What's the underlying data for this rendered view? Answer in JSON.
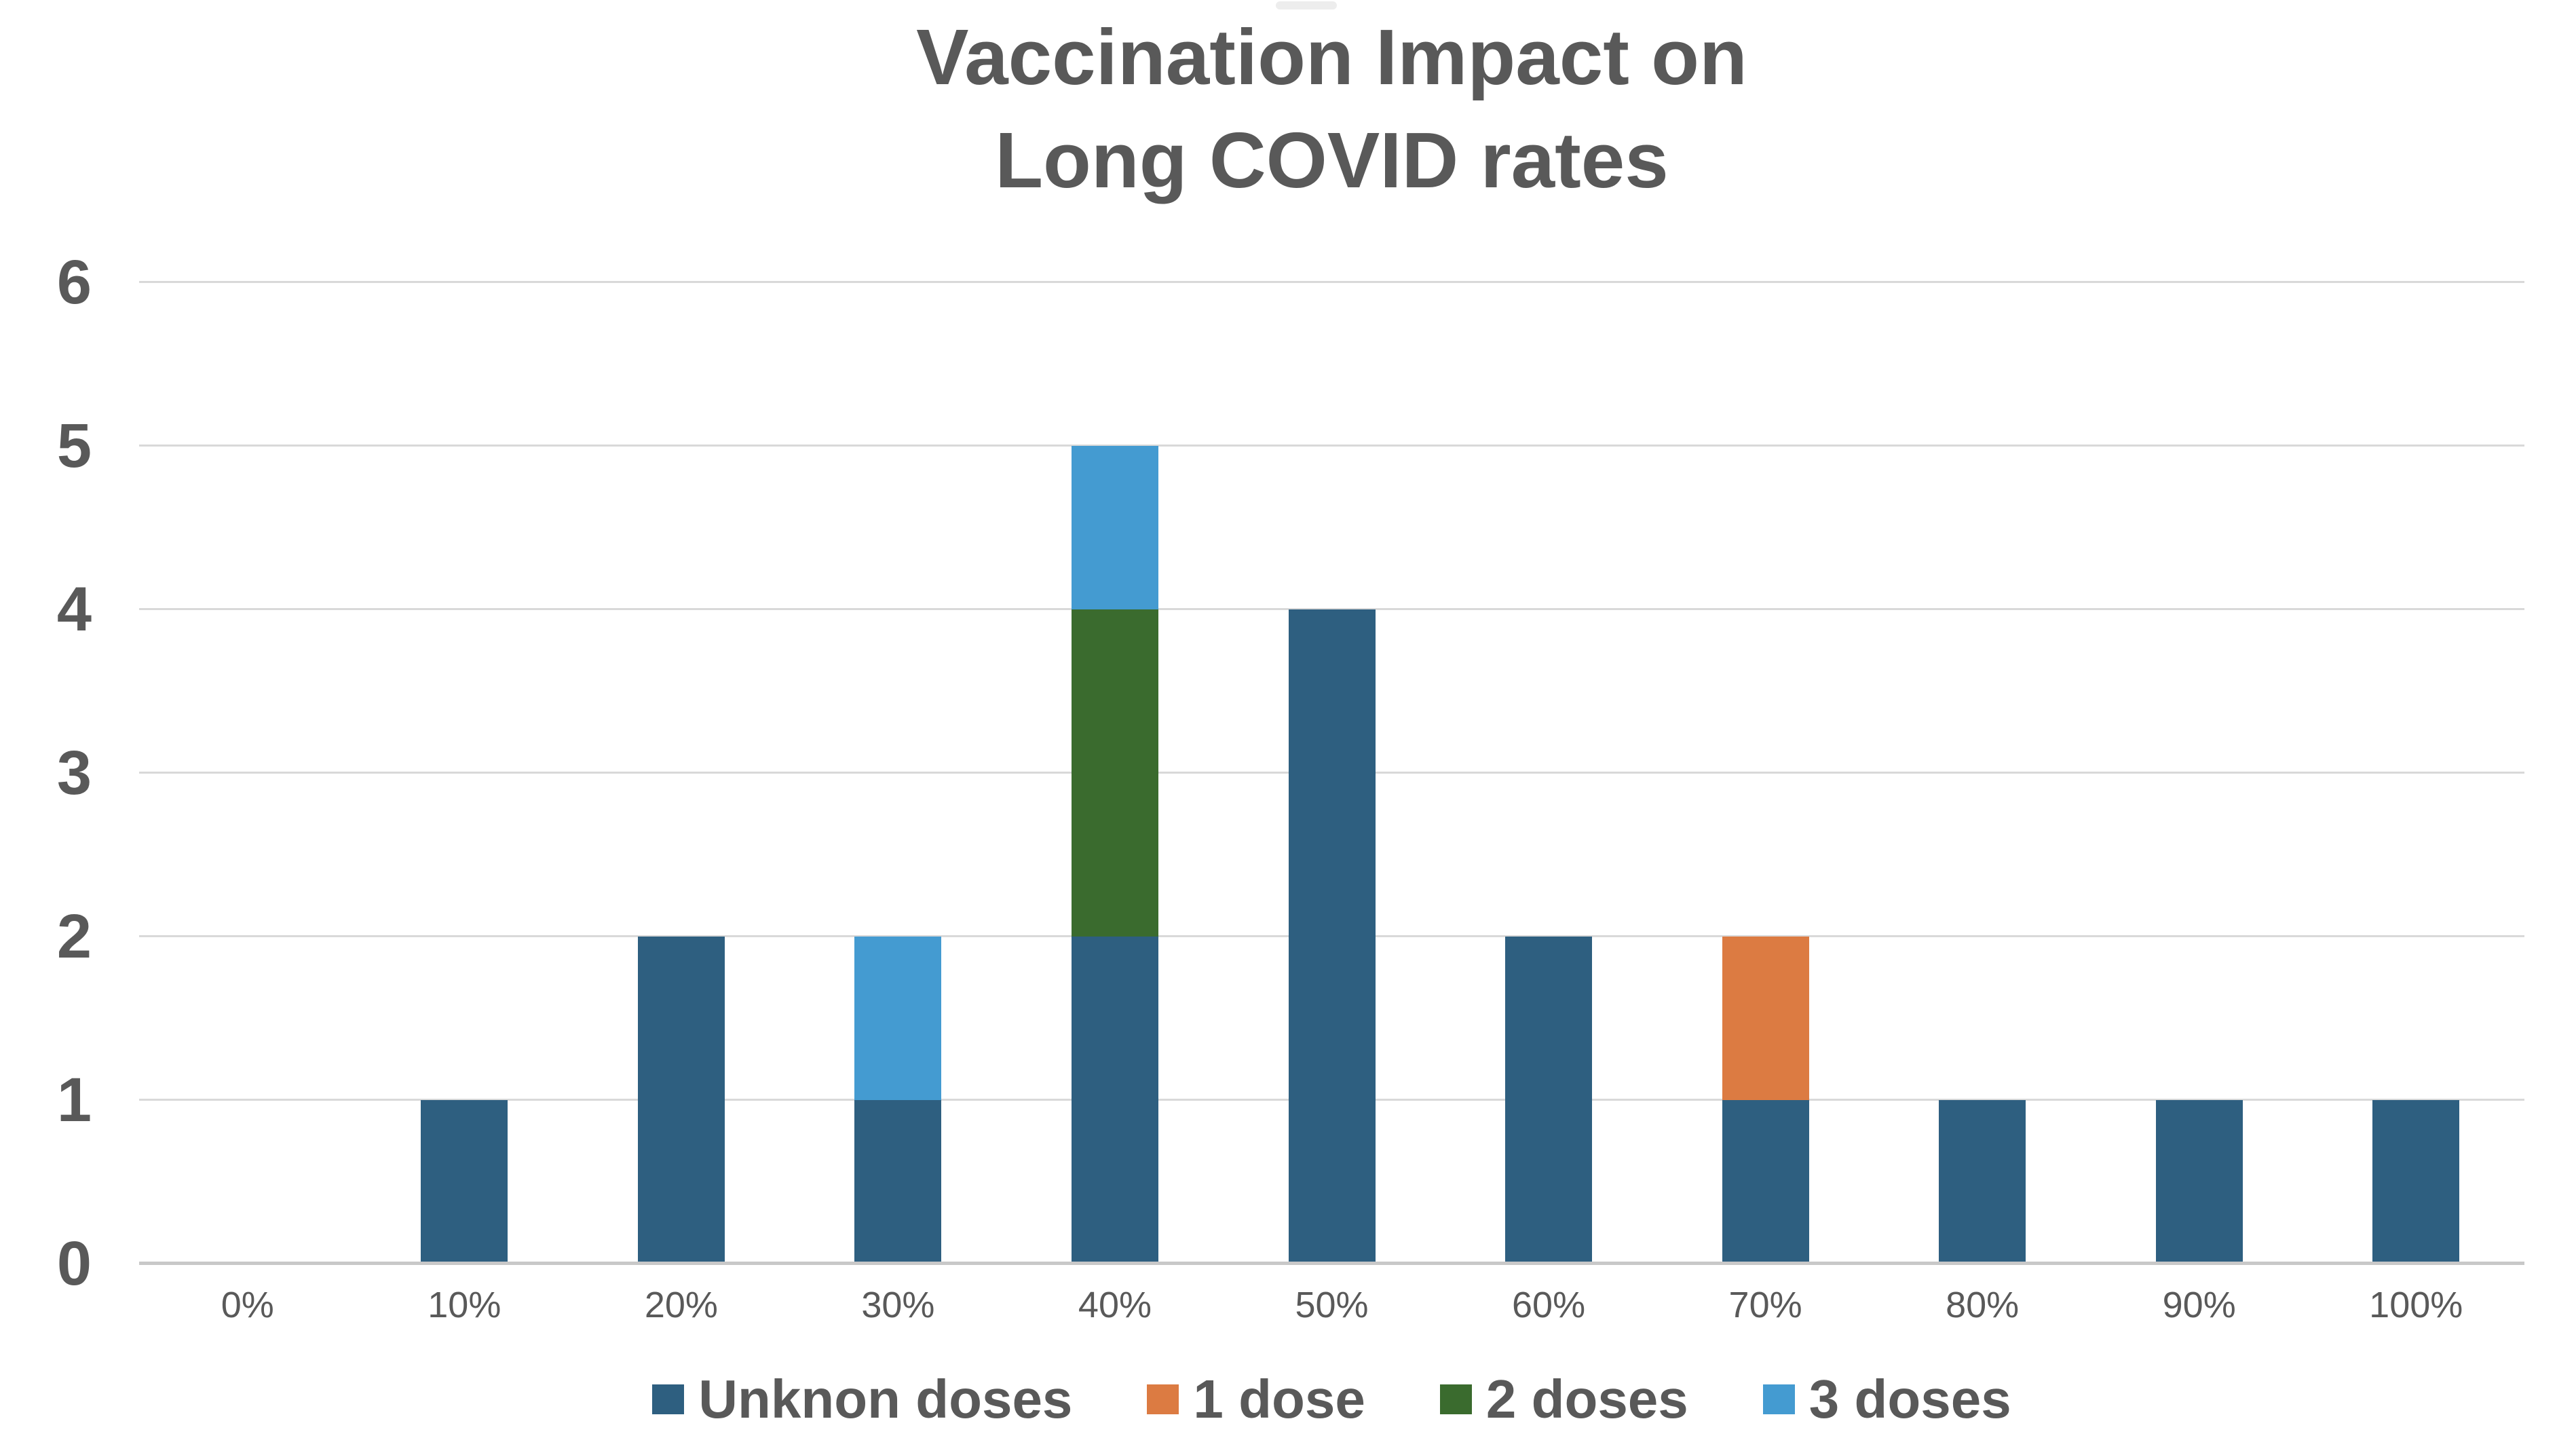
{
  "page": {
    "background": "#ffffff",
    "text_color": "#595959",
    "gridline_color": "#d9d9d9",
    "axis_line_color": "#c8c8c8"
  },
  "chart_data": {
    "type": "bar",
    "stacked": true,
    "title": "Vaccination Impact on Long COVID rates",
    "title_lines": [
      "Vaccination Impact on",
      "Long COVID rates"
    ],
    "xlabel": "",
    "ylabel": "",
    "categories": [
      "0%",
      "10%",
      "20%",
      "30%",
      "40%",
      "50%",
      "60%",
      "70%",
      "80%",
      "90%",
      "100%"
    ],
    "series": [
      {
        "name": "Unknon doses",
        "color": "#2e5f80",
        "values": [
          0,
          1,
          2,
          1,
          2,
          4,
          2,
          1,
          1,
          1,
          1
        ]
      },
      {
        "name": "1 dose",
        "color": "#dc7b42",
        "values": [
          0,
          0,
          0,
          0,
          0,
          0,
          0,
          1,
          0,
          0,
          0
        ]
      },
      {
        "name": "2 doses",
        "color": "#3a6b2e",
        "values": [
          0,
          0,
          0,
          0,
          2,
          0,
          0,
          0,
          0,
          0,
          0
        ]
      },
      {
        "name": "3 doses",
        "color": "#449bd1",
        "values": [
          0,
          0,
          0,
          1,
          1,
          0,
          0,
          0,
          0,
          0,
          0
        ]
      }
    ],
    "stack_totals": [
      0,
      1,
      2,
      2,
      5,
      4,
      2,
      2,
      1,
      1,
      1
    ],
    "y_ticks": [
      0,
      1,
      2,
      3,
      4,
      5,
      6
    ],
    "ylim": [
      0,
      6
    ],
    "grid": true,
    "legend_position": "bottom"
  }
}
